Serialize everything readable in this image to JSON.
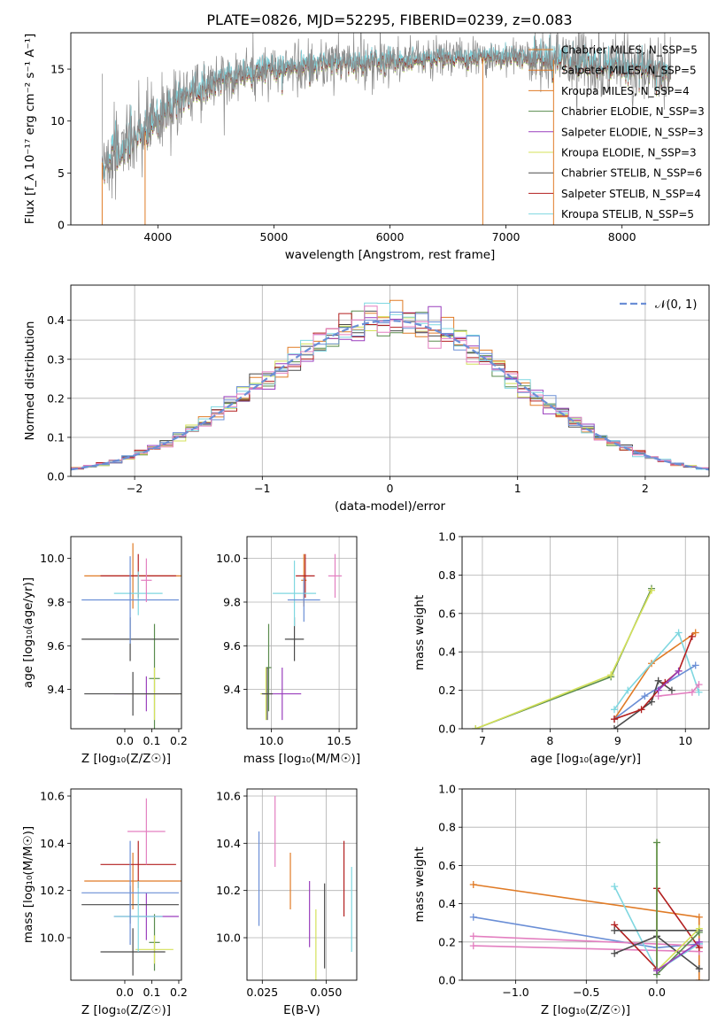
{
  "title": "PLATE=0826, MJD=52295, FIBERID=0239, z=0.083",
  "colors": {
    "c0": "#e07b26",
    "c1": "#5a8c4e",
    "c2": "#9a3fbd",
    "c3": "#d4e15a",
    "c4": "#4a4a4a",
    "c5": "#b21f1f",
    "c6": "#7fd7e0",
    "c7": "#6b8fd6",
    "c8": "#e37fc0",
    "spec": "#8a8a8a"
  },
  "chart_data": [
    {
      "id": "spectrum",
      "type": "line",
      "xlabel": "wavelength [Angstrom, rest frame]",
      "ylabel": "Flux [f_λ 10⁻¹⁷ erg cm⁻² s⁻¹ A⁻¹]",
      "xlim": [
        3250,
        8750
      ],
      "ylim": [
        0,
        18.5
      ],
      "xticks": [
        4000,
        5000,
        6000,
        7000,
        8000
      ],
      "yticks": [
        0,
        5,
        10,
        15
      ],
      "legend_position": "top-right",
      "legend": [
        {
          "label": "Chabrier MILES, N_SSP=5",
          "color_key": "c0"
        },
        {
          "label": "Salpeter MILES, N_SSP=5",
          "color_key": "c0"
        },
        {
          "label": "Kroupa MILES, N_SSP=4",
          "color_key": "c0"
        },
        {
          "label": "Chabrier ELODIE, N_SSP=3",
          "color_key": "c1"
        },
        {
          "label": "Salpeter ELODIE, N_SSP=3",
          "color_key": "c2"
        },
        {
          "label": "Kroupa ELODIE, N_SSP=3",
          "color_key": "c3"
        },
        {
          "label": "Chabrier STELIB, N_SSP=6",
          "color_key": "c4"
        },
        {
          "label": "Salpeter STELIB, N_SSP=4",
          "color_key": "c5"
        },
        {
          "label": "Kroupa STELIB, N_SSP=5",
          "color_key": "c6"
        }
      ],
      "continuum": {
        "x": [
          3520,
          3700,
          3900,
          4100,
          4300,
          4600,
          5000,
          5500,
          6000,
          6500,
          7000,
          7500,
          8000,
          8400
        ],
        "y": [
          6,
          7.5,
          9,
          11.5,
          13,
          14.3,
          15,
          15.6,
          15.8,
          16.1,
          16.2,
          15.8,
          15.2,
          14.8
        ]
      },
      "drops": [
        {
          "x": 3520,
          "y": 0
        },
        {
          "x": 3890,
          "y": 0
        },
        {
          "x": 6800,
          "y": 0
        },
        {
          "x": 7410,
          "y": 0
        }
      ]
    },
    {
      "id": "residuals",
      "type": "step",
      "xlabel": "(data-model)/error",
      "ylabel": "Normed distribution",
      "xlim": [
        -2.5,
        2.5
      ],
      "ylim": [
        0,
        0.49
      ],
      "xticks": [
        -2,
        -1,
        0,
        1,
        2
      ],
      "yticks": [
        0.0,
        0.1,
        0.2,
        0.3,
        0.4
      ],
      "legend_position": "top-right",
      "legend": [
        {
          "label": "𝒩(0, 1)",
          "color_key": "c7"
        }
      ],
      "gaussian": {
        "mu": 0,
        "sigma": 1
      },
      "bin_width": 0.1,
      "n_histograms": 9
    },
    {
      "id": "age-vs-Z",
      "type": "errorbar",
      "xlabel": "Z [log₁₀(Z/Z☉)]",
      "ylabel": "age  [log₁₀(age/yr)]",
      "xlim": [
        -0.2,
        0.21
      ],
      "ylim": [
        9.22,
        10.1
      ],
      "xticks": [
        0.0,
        0.1,
        0.2
      ],
      "xtick_labels": [
        "0.0",
        "0.1",
        "0.2"
      ],
      "yticks": [
        9.4,
        9.6,
        9.8,
        10.0
      ],
      "points": [
        {
          "x": 0.03,
          "y": 9.92,
          "xerr": 0.18,
          "yerr": 0.15,
          "color_key": "c0"
        },
        {
          "x": 0.11,
          "y": 9.45,
          "xerr": 0.02,
          "yerr": 0.25,
          "color_key": "c1"
        },
        {
          "x": 0.08,
          "y": 9.38,
          "xerr": 0.12,
          "yerr": 0.08,
          "color_key": "c2"
        },
        {
          "x": 0.11,
          "y": 9.38,
          "xerr": 0.1,
          "yerr": 0.12,
          "color_key": "c3"
        },
        {
          "x": 0.02,
          "y": 9.63,
          "xerr": 0.18,
          "yerr": 0.1,
          "color_key": "c4"
        },
        {
          "x": 0.03,
          "y": 9.38,
          "xerr": 0.18,
          "yerr": 0.1,
          "color_key": "c4"
        },
        {
          "x": 0.05,
          "y": 9.92,
          "xerr": 0.14,
          "yerr": 0.1,
          "color_key": "c5"
        },
        {
          "x": 0.05,
          "y": 9.84,
          "xerr": 0.09,
          "yerr": 0.1,
          "color_key": "c6"
        },
        {
          "x": 0.02,
          "y": 9.81,
          "xerr": 0.18,
          "yerr": 0.2,
          "color_key": "c7"
        },
        {
          "x": 0.08,
          "y": 9.9,
          "xerr": 0.02,
          "yerr": 0.1,
          "color_key": "c8"
        }
      ]
    },
    {
      "id": "age-vs-mass",
      "type": "errorbar",
      "xlabel": "mass [log₁₀(M/M☉)]",
      "xlim": [
        9.82,
        10.63
      ],
      "ylim": [
        9.22,
        10.1
      ],
      "xticks": [
        10.0,
        10.5
      ],
      "yticks": [
        9.4,
        9.6,
        9.8,
        10.0
      ],
      "points": [
        {
          "x": 10.24,
          "y": 9.9,
          "xerr": 0.02,
          "yerr": 0.12,
          "color_key": "c0"
        },
        {
          "x": 9.98,
          "y": 9.5,
          "xerr": 0.02,
          "yerr": 0.2,
          "color_key": "c1"
        },
        {
          "x": 10.08,
          "y": 9.38,
          "xerr": 0.14,
          "yerr": 0.12,
          "color_key": "c2"
        },
        {
          "x": 9.96,
          "y": 9.38,
          "xerr": 0.04,
          "yerr": 0.12,
          "color_key": "c3"
        },
        {
          "x": 10.17,
          "y": 9.63,
          "xerr": 0.07,
          "yerr": 0.1,
          "color_key": "c4"
        },
        {
          "x": 9.97,
          "y": 9.38,
          "xerr": 0.04,
          "yerr": 0.12,
          "color_key": "c4"
        },
        {
          "x": 10.25,
          "y": 9.92,
          "xerr": 0.07,
          "yerr": 0.1,
          "color_key": "c5"
        },
        {
          "x": 10.17,
          "y": 9.84,
          "xerr": 0.16,
          "yerr": 0.15,
          "color_key": "c6"
        },
        {
          "x": 10.24,
          "y": 9.81,
          "xerr": 0.12,
          "yerr": 0.1,
          "color_key": "c7"
        },
        {
          "x": 10.47,
          "y": 9.92,
          "xerr": 0.05,
          "yerr": 0.1,
          "color_key": "c8"
        }
      ]
    },
    {
      "id": "weight-vs-age",
      "type": "line",
      "xlabel": "age  [log₁₀(age/yr)]",
      "ylabel": "mass weight",
      "xlim": [
        6.7,
        10.35
      ],
      "ylim": [
        0,
        1
      ],
      "xticks": [
        7,
        8,
        9,
        10
      ],
      "yticks": [
        0.0,
        0.2,
        0.4,
        0.6,
        0.8,
        1.0
      ],
      "series": [
        {
          "color_key": "c1",
          "x": [
            6.9,
            8.9,
            9.5
          ],
          "y": [
            0.0,
            0.27,
            0.73
          ]
        },
        {
          "color_key": "c3",
          "x": [
            6.9,
            8.9,
            9.5
          ],
          "y": [
            0.0,
            0.28,
            0.72
          ]
        },
        {
          "color_key": "c0",
          "x": [
            8.95,
            9.5,
            10.15
          ],
          "y": [
            0.05,
            0.34,
            0.5
          ]
        },
        {
          "color_key": "c6",
          "x": [
            8.95,
            9.15,
            9.9,
            10.2
          ],
          "y": [
            0.1,
            0.2,
            0.5,
            0.19
          ]
        },
        {
          "color_key": "c7",
          "x": [
            8.95,
            9.4,
            10.15
          ],
          "y": [
            0.05,
            0.17,
            0.33
          ]
        },
        {
          "color_key": "c4",
          "x": [
            8.95,
            9.5,
            9.6,
            9.8
          ],
          "y": [
            0.0,
            0.14,
            0.25,
            0.2
          ]
        },
        {
          "color_key": "c5",
          "x": [
            8.95,
            9.35,
            9.7,
            9.9,
            10.1
          ],
          "y": [
            0.05,
            0.1,
            0.24,
            0.3,
            0.48
          ]
        },
        {
          "color_key": "c8",
          "x": [
            9.6,
            10.1,
            10.2
          ],
          "y": [
            0.17,
            0.19,
            0.23
          ]
        },
        {
          "color_key": "c2",
          "x": [
            9.6,
            9.9
          ],
          "y": [
            0.2,
            0.3
          ]
        }
      ]
    },
    {
      "id": "mass-vs-Z",
      "type": "errorbar",
      "xlabel": "Z [log₁₀(Z/Z☉)]",
      "ylabel": "mass [log₁₀(M/M☉)]",
      "xlim": [
        -0.2,
        0.21
      ],
      "ylim": [
        9.82,
        10.63
      ],
      "xticks": [
        0.0,
        0.1,
        0.2
      ],
      "xtick_labels": [
        "0.0",
        "0.1",
        "0.2"
      ],
      "yticks": [
        10.0,
        10.2,
        10.4,
        10.6
      ],
      "points": [
        {
          "x": 0.03,
          "y": 10.24,
          "xerr": 0.18,
          "yerr": 0.12,
          "color_key": "c0"
        },
        {
          "x": 0.11,
          "y": 9.98,
          "xerr": 0.02,
          "yerr": 0.12,
          "color_key": "c1"
        },
        {
          "x": 0.08,
          "y": 10.09,
          "xerr": 0.12,
          "yerr": 0.1,
          "color_key": "c2"
        },
        {
          "x": 0.11,
          "y": 9.95,
          "xerr": 0.07,
          "yerr": 0.06,
          "color_key": "c3"
        },
        {
          "x": 0.02,
          "y": 10.14,
          "xerr": 0.18,
          "yerr": 0.08,
          "color_key": "c4"
        },
        {
          "x": 0.03,
          "y": 9.94,
          "xerr": 0.12,
          "yerr": 0.1,
          "color_key": "c4"
        },
        {
          "x": 0.05,
          "y": 10.31,
          "xerr": 0.14,
          "yerr": 0.1,
          "color_key": "c5"
        },
        {
          "x": 0.05,
          "y": 10.09,
          "xerr": 0.09,
          "yerr": 0.15,
          "color_key": "c6"
        },
        {
          "x": 0.02,
          "y": 10.19,
          "xerr": 0.18,
          "yerr": 0.22,
          "color_key": "c7"
        },
        {
          "x": 0.08,
          "y": 10.45,
          "xerr": 0.07,
          "yerr": 0.14,
          "color_key": "c8"
        }
      ]
    },
    {
      "id": "mass-vs-ebv",
      "type": "errorbar",
      "xlabel": "E(B-V)",
      "xlim": [
        0.019,
        0.062
      ],
      "ylim": [
        9.82,
        10.63
      ],
      "xticks": [
        0.025,
        0.05
      ],
      "xtick_labels": [
        "0.025",
        "0.050"
      ],
      "yticks": [
        10.0,
        10.2,
        10.4,
        10.6
      ],
      "points": [
        {
          "x": 0.0237,
          "y": 10.25,
          "xerr": 0,
          "yerr": 0.2,
          "color_key": "c7"
        },
        {
          "x": 0.03,
          "y": 10.45,
          "xerr": 0,
          "yerr": 0.15,
          "color_key": "c8"
        },
        {
          "x": 0.036,
          "y": 10.24,
          "xerr": 0,
          "yerr": 0.12,
          "color_key": "c0"
        },
        {
          "x": 0.0435,
          "y": 10.1,
          "xerr": 0,
          "yerr": 0.14,
          "color_key": "c2"
        },
        {
          "x": 0.046,
          "y": 9.95,
          "xerr": 0,
          "yerr": 0.17,
          "color_key": "c3"
        },
        {
          "x": 0.0494,
          "y": 10.05,
          "xerr": 0,
          "yerr": 0.18,
          "color_key": "c4"
        },
        {
          "x": 0.057,
          "y": 10.25,
          "xerr": 0,
          "yerr": 0.16,
          "color_key": "c5"
        },
        {
          "x": 0.06,
          "y": 10.12,
          "xerr": 0,
          "yerr": 0.18,
          "color_key": "c6"
        }
      ]
    },
    {
      "id": "weight-vs-Z",
      "type": "line",
      "xlabel": "Z [log₁₀(Z/Z☉)]",
      "ylabel": "mass weight",
      "xlim": [
        -1.38,
        0.37
      ],
      "ylim": [
        0,
        1
      ],
      "xticks": [
        -1.0,
        -0.5,
        0.0
      ],
      "xtick_labels": [
        "−1.0",
        "−0.5",
        "0.0"
      ],
      "yticks": [
        0.0,
        0.2,
        0.4,
        0.6,
        0.8,
        1.0
      ],
      "series": [
        {
          "color_key": "c0",
          "x": [
            -1.3,
            0.3,
            0.3
          ],
          "y": [
            0.5,
            0.33,
            0.0
          ]
        },
        {
          "color_key": "c7",
          "x": [
            -1.3,
            0.0,
            0.3
          ],
          "y": [
            0.33,
            0.17,
            0.19
          ]
        },
        {
          "color_key": "c8",
          "x": [
            -1.3,
            0.3
          ],
          "y": [
            0.23,
            0.18
          ]
        },
        {
          "color_key": "c8",
          "x": [
            -1.3,
            0.3
          ],
          "y": [
            0.18,
            0.15
          ]
        },
        {
          "color_key": "c6",
          "x": [
            -0.3,
            0.0,
            0.3
          ],
          "y": [
            0.49,
            0.05,
            0.19
          ]
        },
        {
          "color_key": "c5",
          "x": [
            -0.3,
            0.0,
            0.0,
            0.3
          ],
          "y": [
            0.29,
            0.06,
            0.48,
            0.17
          ]
        },
        {
          "color_key": "c4",
          "x": [
            -0.3,
            0.0,
            0.3
          ],
          "y": [
            0.14,
            0.23,
            0.06
          ]
        },
        {
          "color_key": "c4",
          "x": [
            -0.3,
            0.3
          ],
          "y": [
            0.26,
            0.26
          ]
        },
        {
          "color_key": "c3",
          "x": [
            0.0,
            0.0,
            0.3
          ],
          "y": [
            0.72,
            0.05,
            0.27
          ]
        },
        {
          "color_key": "c1",
          "x": [
            0.0,
            0.0,
            0.3
          ],
          "y": [
            0.72,
            0.03,
            0.25
          ]
        },
        {
          "color_key": "c2",
          "x": [
            0.0,
            0.3
          ],
          "y": [
            0.05,
            0.2
          ]
        }
      ]
    }
  ]
}
